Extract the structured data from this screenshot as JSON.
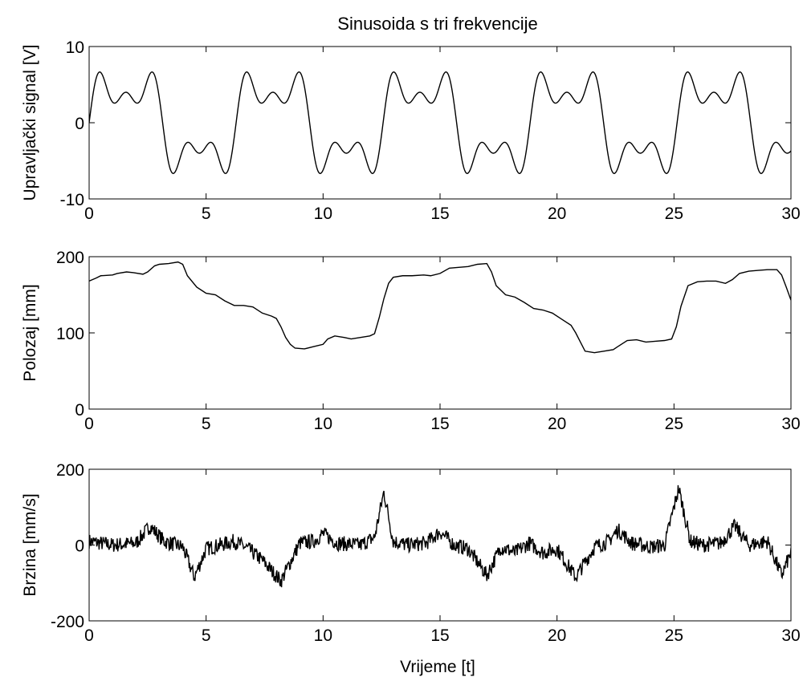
{
  "figure": {
    "title": "Sinusoida s tri frekvencije",
    "xlabel": "Vrijeme [t]"
  },
  "chart_data": [
    {
      "type": "line",
      "id": "upravljacki",
      "title": "Sinusoida s tri frekvencije",
      "xlabel": "",
      "ylabel": "Upravljački signal [V]",
      "xlim": [
        0,
        30
      ],
      "ylim": [
        -10,
        10
      ],
      "xticks": [
        0,
        5,
        10,
        15,
        20,
        25,
        30
      ],
      "yticks": [
        -10,
        0,
        10
      ],
      "grid": false,
      "line_color": "#000000",
      "series": [
        {
          "model": "sum_of_sines",
          "amplitudes": [
            5,
            3,
            2
          ],
          "angular_frequencies": [
            1,
            3,
            5
          ],
          "x_range": [
            0,
            30
          ]
        }
      ]
    },
    {
      "type": "line",
      "id": "polozaj",
      "title": "",
      "xlabel": "",
      "ylabel": "Polozaj [mm]",
      "xlim": [
        0,
        30
      ],
      "ylim": [
        0,
        200
      ],
      "xticks": [
        0,
        5,
        10,
        15,
        20,
        25,
        30
      ],
      "yticks": [
        0,
        100,
        200
      ],
      "grid": false,
      "line_color": "#000000",
      "series": [
        {
          "x": [
            0,
            0.3,
            0.5,
            1.0,
            1.2,
            1.6,
            1.9,
            2.3,
            2.5,
            2.8,
            3.0,
            3.4,
            3.8,
            4.0,
            4.2,
            4.6,
            5.0,
            5.4,
            5.8,
            6.2,
            6.6,
            7.0,
            7.4,
            7.8,
            8.0,
            8.2,
            8.4,
            8.6,
            8.8,
            9.2,
            9.6,
            10.0,
            10.2,
            10.5,
            10.9,
            11.2,
            11.6,
            12.0,
            12.2,
            12.4,
            12.6,
            12.8,
            13.0,
            13.4,
            13.8,
            14.3,
            14.6,
            15.0,
            15.4,
            15.8,
            16.2,
            16.6,
            17.0,
            17.2,
            17.4,
            17.8,
            18.2,
            18.6,
            19.0,
            19.4,
            19.8,
            20.2,
            20.6,
            20.8,
            21.0,
            21.2,
            21.6,
            22.0,
            22.4,
            22.6,
            23.0,
            23.4,
            23.8,
            24.2,
            24.6,
            24.9,
            25.1,
            25.3,
            25.6,
            26.0,
            26.4,
            26.8,
            27.2,
            27.5,
            27.8,
            28.2,
            28.6,
            29.0,
            29.4,
            29.6,
            29.8,
            30.0
          ],
          "y": [
            168,
            172,
            175,
            176,
            178,
            180,
            179,
            177,
            180,
            188,
            190,
            191,
            193,
            190,
            175,
            160,
            152,
            150,
            142,
            136,
            136,
            134,
            126,
            122,
            119,
            108,
            94,
            85,
            80,
            79,
            82,
            85,
            92,
            96,
            94,
            92,
            94,
            96,
            99,
            120,
            145,
            165,
            173,
            175,
            175,
            176,
            175,
            178,
            185,
            186,
            187,
            190,
            191,
            180,
            162,
            150,
            147,
            140,
            132,
            130,
            126,
            118,
            110,
            100,
            88,
            76,
            74,
            76,
            78,
            82,
            90,
            91,
            88,
            89,
            90,
            92,
            108,
            135,
            162,
            167,
            168,
            168,
            165,
            170,
            178,
            181,
            182,
            183,
            183,
            176,
            160,
            143
          ]
        }
      ]
    },
    {
      "type": "line",
      "id": "brzina",
      "title": "",
      "xlabel": "Vrijeme [t]",
      "ylabel": "Brzina [mm/s]",
      "xlim": [
        0,
        30
      ],
      "ylim": [
        -200,
        200
      ],
      "xticks": [
        0,
        5,
        10,
        15,
        20,
        25,
        30
      ],
      "yticks": [
        -200,
        0,
        200
      ],
      "grid": false,
      "line_color": "#000000",
      "series": [
        {
          "x": [
            0,
            1.0,
            2.0,
            2.6,
            3.2,
            4.0,
            4.5,
            5.0,
            5.6,
            6.2,
            6.8,
            7.4,
            8.2,
            9.0,
            9.6,
            10.0,
            10.6,
            11.6,
            12.2,
            12.6,
            13.0,
            13.6,
            14.4,
            15.0,
            15.6,
            16.2,
            17.0,
            17.6,
            18.2,
            18.8,
            19.4,
            20.0,
            20.8,
            21.6,
            22.2,
            22.6,
            23.2,
            24.0,
            24.6,
            25.2,
            25.7,
            26.2,
            27.0,
            27.6,
            28.2,
            29.0,
            29.6,
            30.0
          ],
          "y": [
            10,
            0,
            5,
            50,
            10,
            -5,
            -85,
            -10,
            0,
            10,
            -10,
            -40,
            -95,
            5,
            10,
            30,
            5,
            0,
            20,
            140,
            10,
            0,
            5,
            35,
            0,
            -10,
            -80,
            -5,
            -20,
            5,
            -20,
            -10,
            -85,
            -5,
            10,
            40,
            5,
            -5,
            0,
            150,
            10,
            0,
            5,
            50,
            0,
            10,
            -80,
            -20
          ]
        }
      ]
    }
  ]
}
